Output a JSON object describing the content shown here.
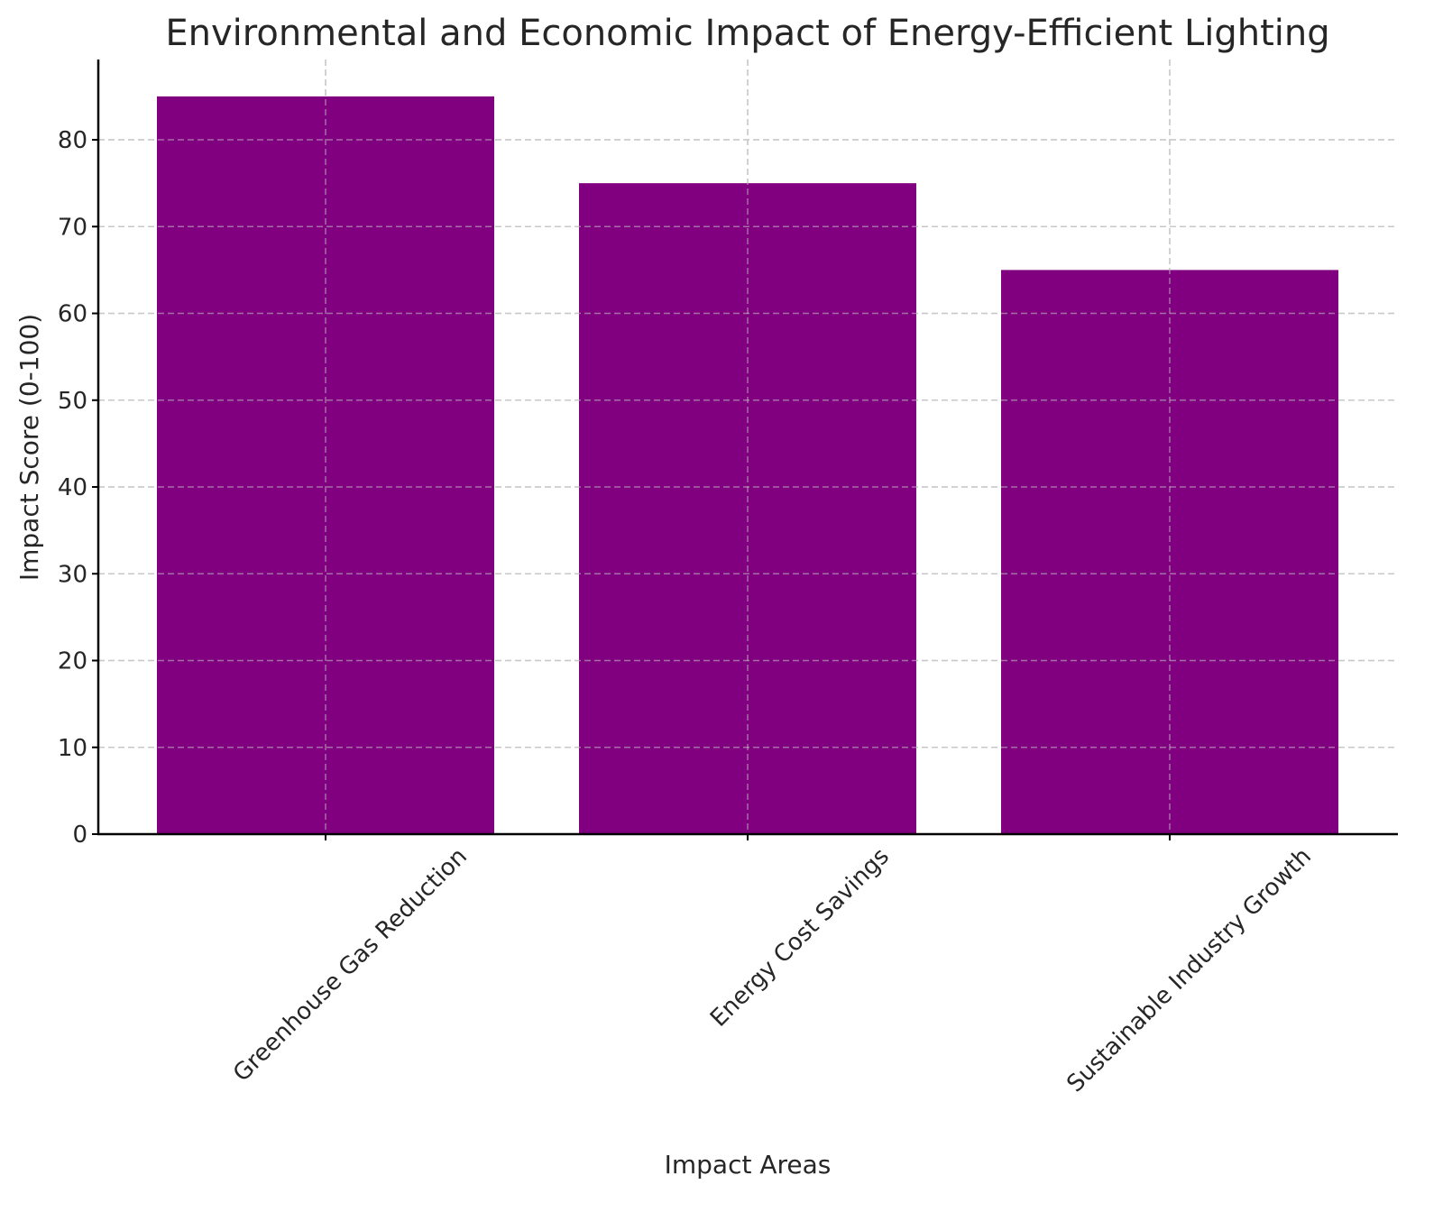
{
  "chart_data": {
    "type": "bar",
    "title": "Environmental and Economic Impact of Energy-Efficient Lighting",
    "xlabel": "Impact Areas",
    "ylabel": "Impact Score (0-100)",
    "categories": [
      "Greenhouse Gas Reduction",
      "Energy Cost Savings",
      "Sustainable Industry Growth"
    ],
    "values": [
      85,
      75,
      65
    ],
    "ylim": [
      0,
      89.25
    ],
    "yticks": [
      0,
      10,
      20,
      30,
      40,
      50,
      60,
      70,
      80
    ],
    "bar_color": "#800080",
    "grid": true,
    "legend": "none"
  }
}
